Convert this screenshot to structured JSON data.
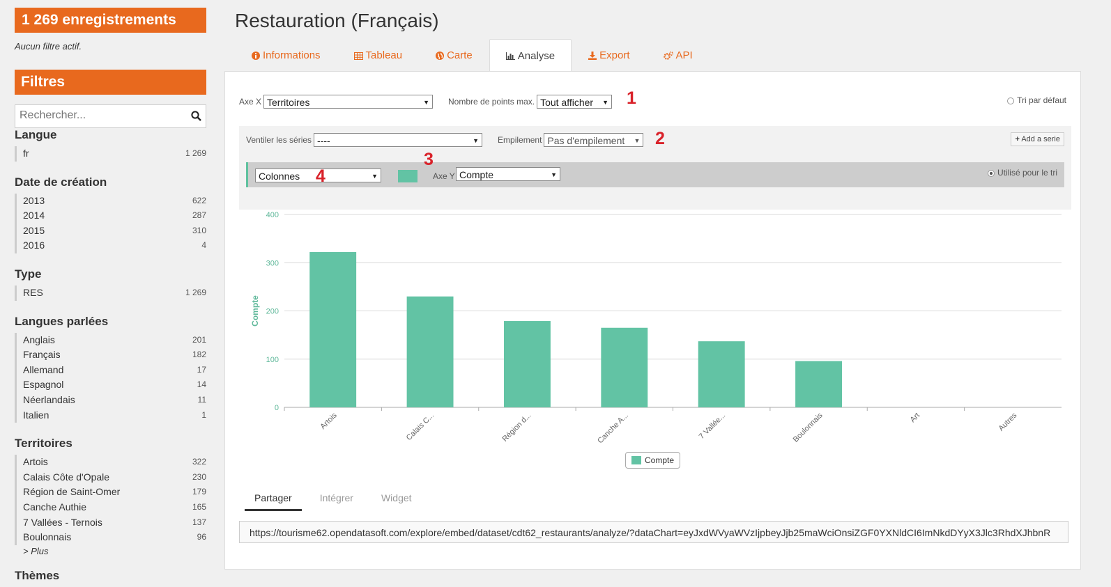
{
  "sidebar": {
    "record_count": "1 269 enregistrements",
    "no_filter": "Aucun filtre actif.",
    "filters_title": "Filtres",
    "search_placeholder": "Rechercher...",
    "facets": [
      {
        "title": "Langue",
        "items": [
          {
            "label": "fr",
            "count": "1 269"
          }
        ]
      },
      {
        "title": "Date de création",
        "items": [
          {
            "label": "2013",
            "count": "622"
          },
          {
            "label": "2014",
            "count": "287"
          },
          {
            "label": "2015",
            "count": "310"
          },
          {
            "label": "2016",
            "count": "4"
          }
        ]
      },
      {
        "title": "Type",
        "items": [
          {
            "label": "RES",
            "count": "1 269"
          }
        ]
      },
      {
        "title": "Langues parlées",
        "items": [
          {
            "label": "Anglais",
            "count": "201"
          },
          {
            "label": "Français",
            "count": "182"
          },
          {
            "label": "Allemand",
            "count": "17"
          },
          {
            "label": "Espagnol",
            "count": "14"
          },
          {
            "label": "Néerlandais",
            "count": "11"
          },
          {
            "label": "Italien",
            "count": "1"
          }
        ]
      },
      {
        "title": "Territoires",
        "items": [
          {
            "label": "Artois",
            "count": "322"
          },
          {
            "label": "Calais Côte d'Opale",
            "count": "230"
          },
          {
            "label": "Région de Saint-Omer",
            "count": "179"
          },
          {
            "label": "Canche Authie",
            "count": "165"
          },
          {
            "label": "7 Vallées - Ternois",
            "count": "137"
          },
          {
            "label": "Boulonnais",
            "count": "96"
          }
        ]
      }
    ],
    "more_label": "> Plus",
    "next_facet_title": "Thèmes"
  },
  "page_title": "Restauration (Français)",
  "tabs": [
    {
      "label": "Informations",
      "icon": "info-circle-icon"
    },
    {
      "label": "Tableau",
      "icon": "table-icon"
    },
    {
      "label": "Carte",
      "icon": "globe-icon"
    },
    {
      "label": "Analyse",
      "icon": "bar-chart-icon",
      "active": true
    },
    {
      "label": "Export",
      "icon": "download-icon"
    },
    {
      "label": "API",
      "icon": "gears-icon"
    }
  ],
  "controls": {
    "x_axis_label": "Axe X",
    "x_axis_value": "Territoires",
    "max_points_label": "Nombre de points max.",
    "max_points_value": "Tout afficher",
    "default_sort_label": "Tri par défaut",
    "breakdown_label": "Ventiler les séries",
    "breakdown_value": "----",
    "stacking_label": "Empilement",
    "stacking_value": "Pas d'empilement",
    "add_serie_label": "Add a serie",
    "chart_type_value": "Colonnes",
    "y_axis_label": "Axe Y",
    "y_axis_value": "Compte",
    "used_for_sort_label": "Utilisé pour le tri",
    "series_color": "#62c3a4"
  },
  "annotations": [
    "1",
    "2",
    "3",
    "4"
  ],
  "chart_data": {
    "type": "bar",
    "categories": [
      "Artois",
      "Calais C...",
      "Région d...",
      "Canche A...",
      "7 Vallée...",
      "Boulonnais",
      "Art",
      "Autres"
    ],
    "series": [
      {
        "name": "Compte",
        "values": [
          322,
          230,
          179,
          165,
          137,
          96,
          0,
          0
        ]
      }
    ],
    "ylabel": "Compte",
    "ylim": [
      0,
      400
    ],
    "yticks": [
      0,
      100,
      200,
      300,
      400
    ],
    "grid": true,
    "legend": "bottom-center"
  },
  "share": {
    "tabs": [
      "Partager",
      "Intégrer",
      "Widget"
    ],
    "active": "Partager",
    "url": "https://tourisme62.opendatasoft.com/explore/embed/dataset/cdt62_restaurants/analyze/?dataChart=eyJxdWVyaWVzIjpbeyJjb25maWciOnsiZGF0YXNldCI6ImNkdDYyX3Jlc3RhdXJhbnR"
  }
}
